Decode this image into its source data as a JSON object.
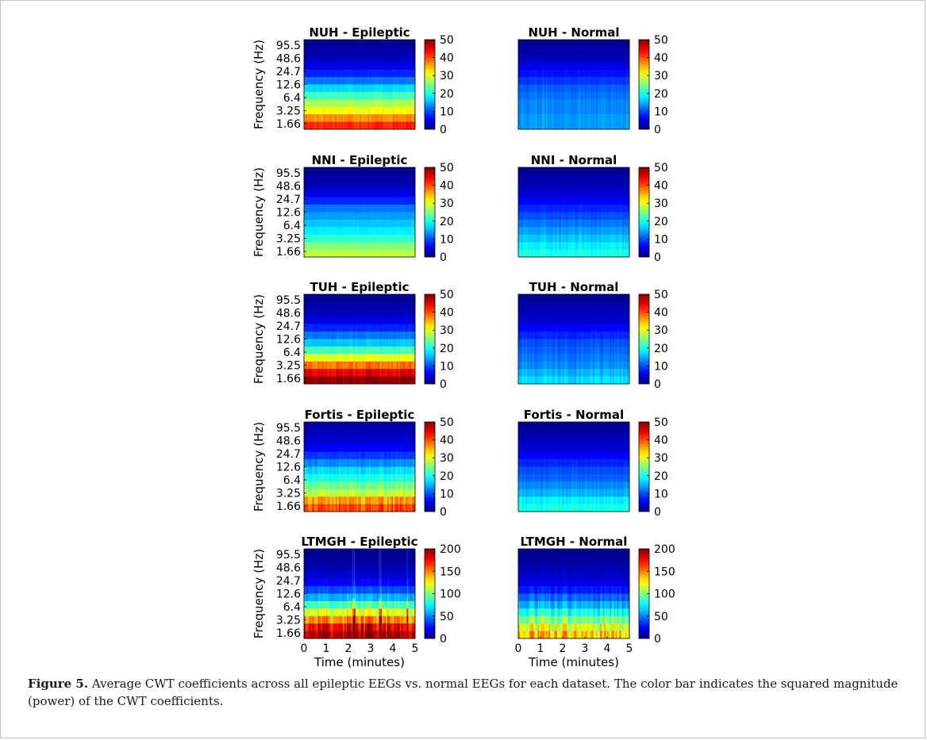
{
  "chart_data": [
    {
      "type": "heatmap",
      "title": "NUH - Epileptic",
      "ylabel": "Frequency (Hz)",
      "y_tick_labels": [
        "95.5",
        "48.6",
        "24.7",
        "12.6",
        "6.4",
        "3.25",
        "1.66"
      ],
      "x_tick_labels": [],
      "xlabel": "",
      "colorbar": {
        "range": [
          0,
          50
        ],
        "tick_labels": [
          "50",
          "40",
          "30",
          "20",
          "10",
          "0"
        ]
      },
      "band_values": [
        1,
        2,
        3,
        5,
        8,
        12,
        17,
        22,
        27,
        31,
        37,
        42
      ],
      "stripe_noise": 0.05,
      "spikes": false
    },
    {
      "type": "heatmap",
      "title": "NUH - Normal",
      "ylabel": "",
      "y_tick_labels": [],
      "x_tick_labels": [],
      "xlabel": "",
      "colorbar": {
        "range": [
          0,
          50
        ],
        "tick_labels": [
          "50",
          "40",
          "30",
          "20",
          "10",
          "0"
        ]
      },
      "band_values": [
        1,
        2,
        3,
        5,
        7,
        9,
        11,
        12,
        13,
        13,
        14,
        14
      ],
      "stripe_noise": 0.1,
      "spikes": false
    },
    {
      "type": "heatmap",
      "title": "NNI - Epileptic",
      "ylabel": "Frequency (Hz)",
      "y_tick_labels": [
        "95.5",
        "48.6",
        "24.7",
        "12.6",
        "6.4",
        "3.25",
        "1.66"
      ],
      "x_tick_labels": [],
      "xlabel": "",
      "colorbar": {
        "range": [
          0,
          50
        ],
        "tick_labels": [
          "50",
          "40",
          "30",
          "20",
          "10",
          "0"
        ]
      },
      "band_values": [
        1,
        2,
        3,
        5,
        8,
        12,
        14,
        16,
        18,
        21,
        25,
        28
      ],
      "stripe_noise": 0.02,
      "spikes": false
    },
    {
      "type": "heatmap",
      "title": "NNI - Normal",
      "ylabel": "",
      "y_tick_labels": [],
      "x_tick_labels": [],
      "xlabel": "",
      "colorbar": {
        "range": [
          0,
          50
        ],
        "tick_labels": [
          "50",
          "40",
          "30",
          "20",
          "10",
          "0"
        ]
      },
      "band_values": [
        1,
        2,
        3,
        4,
        6,
        8,
        10,
        12,
        14,
        16,
        18,
        20
      ],
      "stripe_noise": 0.08,
      "spikes": false
    },
    {
      "type": "heatmap",
      "title": "TUH - Epileptic",
      "ylabel": "Frequency (Hz)",
      "y_tick_labels": [
        "95.5",
        "48.6",
        "24.7",
        "12.6",
        "6.4",
        "3.25",
        "1.66"
      ],
      "x_tick_labels": [],
      "xlabel": "",
      "colorbar": {
        "range": [
          0,
          50
        ],
        "tick_labels": [
          "50",
          "40",
          "30",
          "20",
          "10",
          "0"
        ]
      },
      "band_values": [
        1,
        2,
        3,
        5,
        8,
        12,
        16,
        22,
        30,
        38,
        45,
        50
      ],
      "stripe_noise": 0.06,
      "spikes": false
    },
    {
      "type": "heatmap",
      "title": "TUH - Normal",
      "ylabel": "",
      "y_tick_labels": [],
      "x_tick_labels": [],
      "xlabel": "",
      "colorbar": {
        "range": [
          0,
          50
        ],
        "tick_labels": [
          "50",
          "40",
          "30",
          "20",
          "10",
          "0"
        ]
      },
      "band_values": [
        1,
        2,
        3,
        4,
        6,
        8,
        10,
        11,
        12,
        13,
        15,
        17
      ],
      "stripe_noise": 0.12,
      "spikes": false
    },
    {
      "type": "heatmap",
      "title": "Fortis - Epileptic",
      "ylabel": "Frequency (Hz)",
      "y_tick_labels": [
        "95.5",
        "48.6",
        "24.7",
        "12.6",
        "6.4",
        "3.25",
        "1.66"
      ],
      "x_tick_labels": [],
      "xlabel": "",
      "colorbar": {
        "range": [
          0,
          50
        ],
        "tick_labels": [
          "50",
          "40",
          "30",
          "20",
          "10",
          "0"
        ]
      },
      "band_values": [
        2,
        3,
        4,
        6,
        9,
        13,
        17,
        20,
        24,
        28,
        36,
        40
      ],
      "stripe_noise": 0.1,
      "spikes": false
    },
    {
      "type": "heatmap",
      "title": "Fortis - Normal",
      "ylabel": "",
      "y_tick_labels": [],
      "x_tick_labels": [],
      "xlabel": "",
      "colorbar": {
        "range": [
          0,
          50
        ],
        "tick_labels": [
          "50",
          "40",
          "30",
          "20",
          "10",
          "0"
        ]
      },
      "band_values": [
        1,
        2,
        3,
        4,
        6,
        8,
        10,
        11,
        13,
        15,
        18,
        20
      ],
      "stripe_noise": 0.08,
      "spikes": false
    },
    {
      "type": "heatmap",
      "title": "LTMGH - Epileptic",
      "ylabel": "Frequency (Hz)",
      "y_tick_labels": [
        "95.5",
        "48.6",
        "24.7",
        "12.6",
        "6.4",
        "3.25",
        "1.66"
      ],
      "x_tick_labels": [
        "0",
        "1",
        "2",
        "3",
        "4",
        "5"
      ],
      "xlabel": "Time (minutes)",
      "colorbar": {
        "range": [
          0,
          200
        ],
        "tick_labels": [
          "200",
          "150",
          "100",
          "50",
          "0"
        ]
      },
      "band_values": [
        4,
        6,
        10,
        16,
        25,
        40,
        60,
        90,
        120,
        150,
        180,
        195
      ],
      "stripe_noise": 0.12,
      "spikes": true
    },
    {
      "type": "heatmap",
      "title": "LTMGH - Normal",
      "ylabel": "",
      "y_tick_labels": [],
      "x_tick_labels": [
        "0",
        "1",
        "2",
        "3",
        "4",
        "5"
      ],
      "xlabel": "Time (minutes)",
      "colorbar": {
        "range": [
          0,
          200
        ],
        "tick_labels": [
          "200",
          "150",
          "100",
          "50",
          "0"
        ]
      },
      "band_values": [
        4,
        6,
        10,
        14,
        20,
        30,
        45,
        60,
        80,
        100,
        120,
        135
      ],
      "stripe_noise": 0.18,
      "spikes": false
    }
  ],
  "caption": {
    "label": "Figure 5.",
    "text": " Average CWT coefficients across all epileptic EEGs vs. normal EEGs for each dataset. The color bar indicates the squared magnitude (power) of the CWT coefficients."
  }
}
